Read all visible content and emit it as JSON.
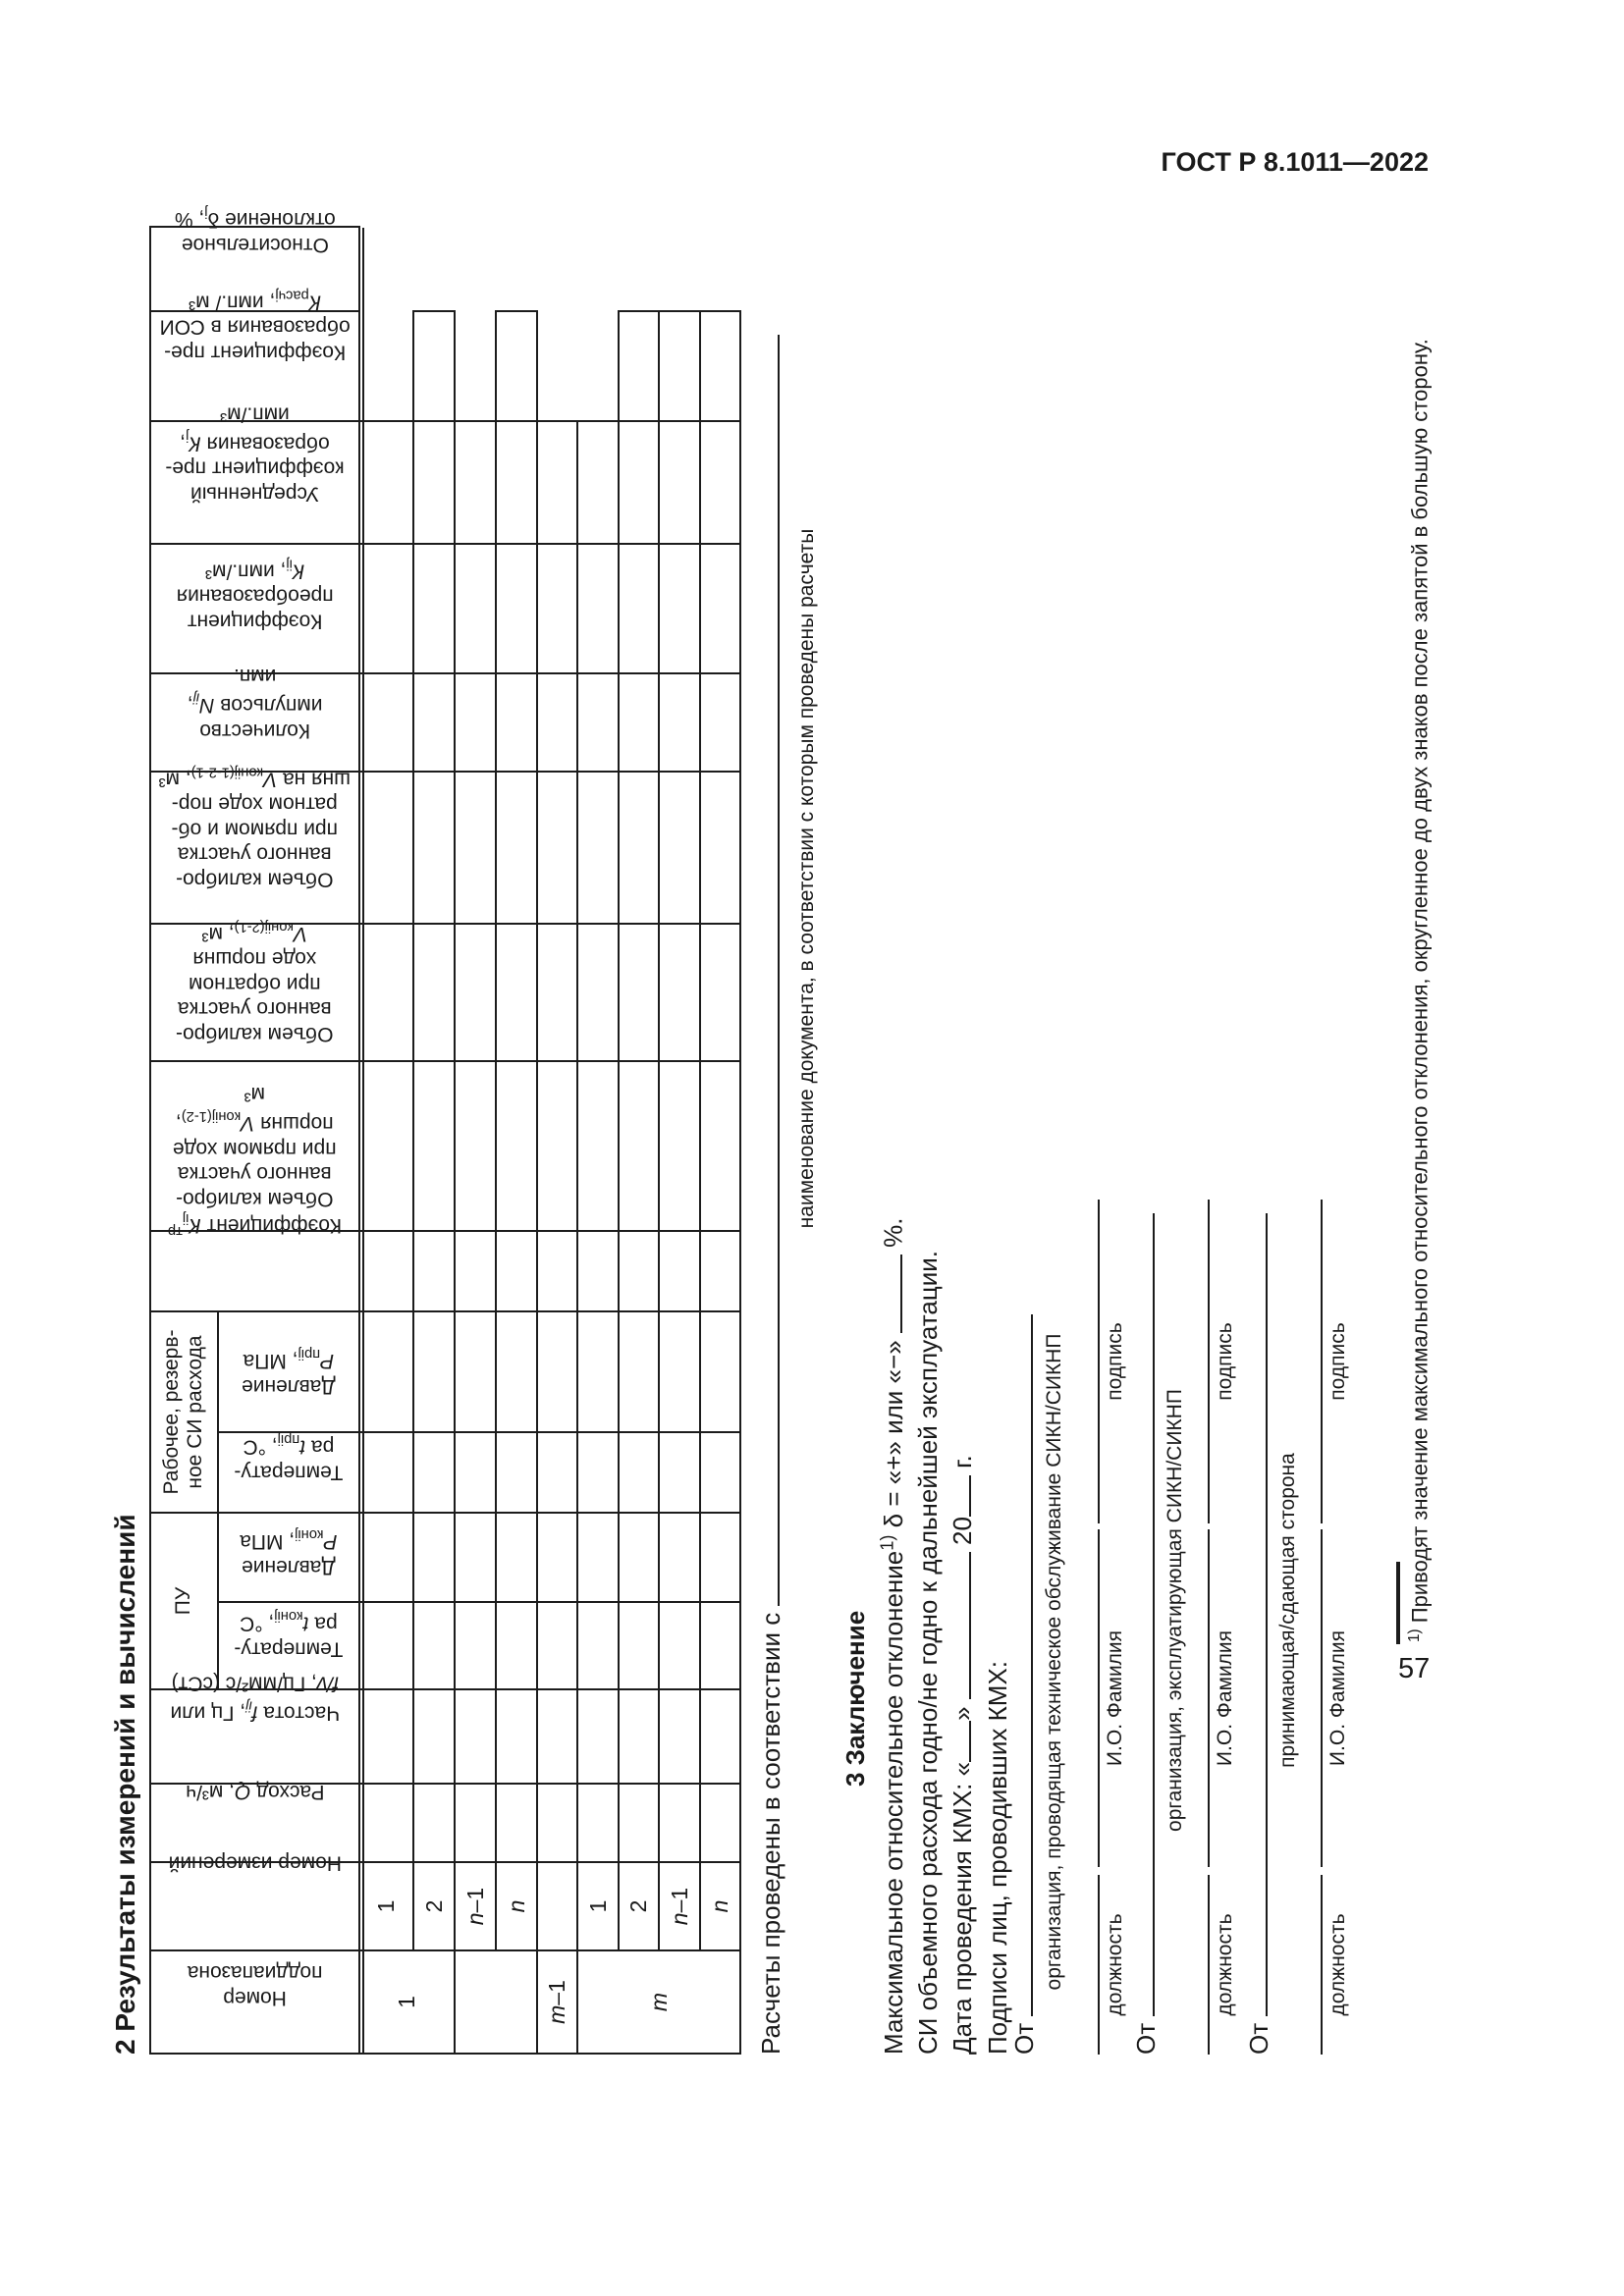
{
  "standard_header": "ГОСТ Р 8.1011—2022",
  "page_number": "57",
  "results_section": {
    "title": "2 Результаты измерений и вычислений",
    "table": {
      "cols": {
        "subrange": "Номер<br>поддиапазона",
        "measurement": "Номер измерений",
        "flow": "Расход <i>Q</i>, м³/ч",
        "freq": "Частота <i>f<sub>ij</sub></i>, Гц или<br><i>f/v</i>, Гц/мм²/с (сСт)",
        "pu_group": "ПУ",
        "pu_temp": "Температу-<br>ра <i>t</i><sub>конij</sub>, °С",
        "pu_press": "Давление<br><i>Р</i><sub>конij</sub>, МПа",
        "si_group": "Рабочее, резерв-<br>ное СИ расхода",
        "si_temp": "Температу-<br>ра <i>t</i><sub>прij</sub>, °С",
        "si_press": "Давление<br><i>Р</i><sub>прij</sub>, МПа",
        "ktr": "Коэффициент <i>К</i><sub>ij</sub><sup>тр</sup>",
        "vol_forward": "Объем калибро-<br>ванного участка<br>при прямом ходе<br>поршня <i>V</i><sub>конij(1-2)</sub>,<br>м³",
        "vol_reverse": "Объем калибро-<br>ванного участка<br>при обратном<br>ходе поршня<br><i>V</i><sub>конij(2-1)</sub>, м³",
        "vol_both": "Объем калибро-<br>ванного участка<br>при прямом и об-<br>ратном ходе пор-<br>шня на <i>V</i><sub>конij(1-2-1)</sub>, м³",
        "pulses": "Количество<br>импульсов <i>N<sub>ij</sub></i>,<br>имп.",
        "kij": "Коэффициент<br>преобразования<br><i>К</i><sub>ij</sub>, имп./м³",
        "kj": "Усредненный<br>коэффициент пре-<br>образования <i>К</i><sub>j</sub>,<br>имп./м³",
        "krasch": "Коэффициент пре-<br>образования в СОИ<br><i>К</i><sub>расчj</sub>, имп./ м³",
        "deviation": "Относительное<br>отклонение δ<sub>j</sub>, %"
      },
      "measurements": [
        "1",
        "2",
        "<i>n</i>–1",
        "<i>n</i>",
        "",
        "1",
        "2",
        "<i>n</i>–1",
        "<i>n</i>"
      ],
      "subranges": [
        "1",
        "",
        "<i>m</i>–1",
        "<i>m</i>"
      ]
    }
  },
  "calc_note": {
    "text": "Расчеты проведены в соответствии с",
    "caption": "наименование документа, в соответствии с которым проведены расчеты"
  },
  "conclusion": {
    "title": "3 Заключение",
    "max_deviation_before": "Максимальное относительное отклонение<sup>1)</sup> δ = «+» или «−»",
    "max_deviation_after": "%.",
    "fitness_line": "СИ объемного расхода годно/не годно к дальнейшей эксплуатации.",
    "date_prefix": "Дата проведения КМХ: «",
    "date_close_quote": "»",
    "date_year": "20",
    "date_suffix": "г.",
    "signatures_heading": "Подписи лиц, проводивших КМХ:",
    "from_label": "От",
    "org_service": "организация, проводящая техническое обслуживание СИКН/СИКНП",
    "org_operating": "организация, эксплуатирующая СИКН/СИКНП",
    "org_party": "принимающая/сдающая сторона",
    "sig_position": "должность",
    "sig_name": "И.О. Фамилия",
    "sig_sign": "подпись"
  },
  "footnote": "<sup>1)</sup> Приводят значение максимального относительного отклонения, округленное до двух знаков после запятой в большую сторону."
}
